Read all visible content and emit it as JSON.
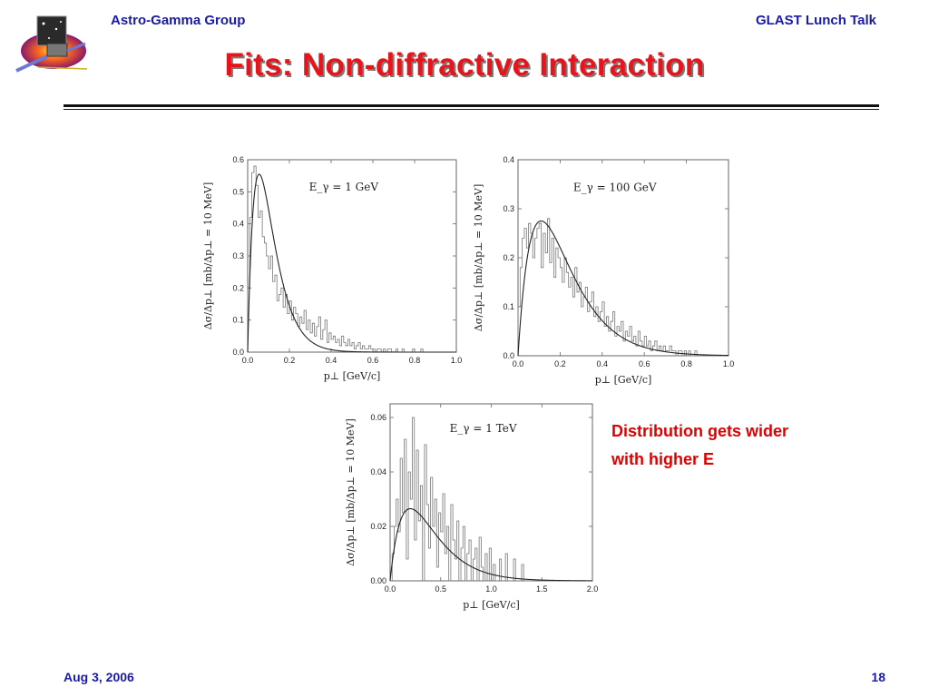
{
  "header": {
    "left": "Astro-Gamma Group",
    "right": "GLAST Lunch Talk"
  },
  "title": "Fits: Non-diffractive Interaction",
  "note": {
    "line1": "Distribution gets wider",
    "line2": "with higher E"
  },
  "footer": {
    "date": "Aug 3, 2006",
    "page": "18"
  },
  "colors": {
    "title": "#e8141c",
    "header": "#1a1aa8",
    "note": "#e00000"
  },
  "chart_data": [
    {
      "type": "line",
      "annotation": "E_γ = 1 GeV",
      "xlabel": "p⊥ [GeV/c]",
      "ylabel": "Δσ/Δp⊥ [mb/Δp⊥ = 10 MeV]",
      "xlim": [
        0.0,
        1.0
      ],
      "ylim": [
        0.0,
        0.6
      ],
      "xticks": [
        "0.0",
        "0.2",
        "0.4",
        "0.6",
        "0.8",
        "1.0"
      ],
      "yticks": [
        "0.0",
        "0.1",
        "0.2",
        "0.3",
        "0.4",
        "0.5",
        "0.6"
      ],
      "series": [
        {
          "kind": "histogram",
          "bin_width": 0.01,
          "values": [
            0.2,
            0.42,
            0.56,
            0.58,
            0.52,
            0.42,
            0.44,
            0.36,
            0.34,
            0.3,
            0.26,
            0.3,
            0.22,
            0.24,
            0.16,
            0.18,
            0.2,
            0.14,
            0.18,
            0.12,
            0.16,
            0.1,
            0.14,
            0.12,
            0.08,
            0.11,
            0.09,
            0.13,
            0.07,
            0.1,
            0.06,
            0.09,
            0.05,
            0.08,
            0.11,
            0.04,
            0.07,
            0.1,
            0.03,
            0.06,
            0.04,
            0.05,
            0.03,
            0.04,
            0.02,
            0.05,
            0.03,
            0.02,
            0.04,
            0.02,
            0.03,
            0.01,
            0.02,
            0.03,
            0.01,
            0.02,
            0.01,
            0.01,
            0.02,
            0.01,
            0.01,
            0.0,
            0.01,
            0.01,
            0.0,
            0.01,
            0.0,
            0.01,
            0.01,
            0.0,
            0.0,
            0.01,
            0.0,
            0.0,
            0.01,
            0.0,
            0.0,
            0.0,
            0.0,
            0.01,
            0.0,
            0.0,
            0.0,
            0.01,
            0.0,
            0.0,
            0.0,
            0.0,
            0.0,
            0.0,
            0.0,
            0.0,
            0.0,
            0.0,
            0.0,
            0.0,
            0.0,
            0.0,
            0.0,
            0.0
          ]
        },
        {
          "kind": "fit",
          "peak_x": 0.055,
          "peak_y": 0.555,
          "shape": "x*exp(-x/x0)"
        }
      ]
    },
    {
      "type": "line",
      "annotation": "E_γ = 100 GeV",
      "xlabel": "p⊥ [GeV/c]",
      "ylabel": "Δσ/Δp⊥ [mb/Δp⊥ = 10 MeV]",
      "xlim": [
        0.0,
        1.0
      ],
      "ylim": [
        0.0,
        0.4
      ],
      "xticks": [
        "0.0",
        "0.2",
        "0.4",
        "0.6",
        "0.8",
        "1.0"
      ],
      "yticks": [
        "0.0",
        "0.1",
        "0.2",
        "0.3",
        "0.4"
      ],
      "series": [
        {
          "kind": "histogram",
          "bin_width": 0.01,
          "values": [
            0.1,
            0.18,
            0.24,
            0.26,
            0.22,
            0.27,
            0.25,
            0.2,
            0.24,
            0.26,
            0.27,
            0.18,
            0.25,
            0.21,
            0.28,
            0.19,
            0.24,
            0.16,
            0.22,
            0.2,
            0.18,
            0.15,
            0.2,
            0.17,
            0.14,
            0.16,
            0.12,
            0.18,
            0.13,
            0.15,
            0.1,
            0.12,
            0.14,
            0.09,
            0.11,
            0.13,
            0.08,
            0.1,
            0.07,
            0.09,
            0.11,
            0.06,
            0.08,
            0.05,
            0.07,
            0.09,
            0.04,
            0.06,
            0.05,
            0.07,
            0.03,
            0.05,
            0.04,
            0.06,
            0.03,
            0.04,
            0.02,
            0.05,
            0.03,
            0.02,
            0.04,
            0.02,
            0.03,
            0.01,
            0.02,
            0.03,
            0.01,
            0.02,
            0.01,
            0.02,
            0.01,
            0.01,
            0.02,
            0.01,
            0.01,
            0.0,
            0.01,
            0.01,
            0.0,
            0.01,
            0.0,
            0.01,
            0.0,
            0.0,
            0.01,
            0.0,
            0.0,
            0.0,
            0.0,
            0.0,
            0.0,
            0.0,
            0.0,
            0.0,
            0.0,
            0.0,
            0.0,
            0.0,
            0.0,
            0.0
          ]
        },
        {
          "kind": "fit",
          "peak_x": 0.11,
          "peak_y": 0.275,
          "shape": "x*exp(-x/x0)"
        }
      ]
    },
    {
      "type": "line",
      "annotation": "E_γ = 1 TeV",
      "xlabel": "p⊥ [GeV/c]",
      "ylabel": "Δσ/Δp⊥ [mb/Δp⊥ = 10 MeV]",
      "xlim": [
        0.0,
        2.0
      ],
      "ylim": [
        0.0,
        0.065
      ],
      "xticks": [
        "0.0",
        "0.5",
        "1.0",
        "1.5",
        "2.0"
      ],
      "yticks": [
        "0.00",
        "0.02",
        "0.04",
        "0.06"
      ],
      "series": [
        {
          "kind": "histogram",
          "bin_width": 0.02,
          "values": [
            0.0,
            0.01,
            0.02,
            0.03,
            0.018,
            0.045,
            0.025,
            0.052,
            0.008,
            0.04,
            0.03,
            0.06,
            0.015,
            0.048,
            0.022,
            0.035,
            0.0,
            0.05,
            0.028,
            0.012,
            0.038,
            0.02,
            0.03,
            0.005,
            0.025,
            0.018,
            0.032,
            0.01,
            0.02,
            0.0,
            0.028,
            0.015,
            0.008,
            0.022,
            0.0,
            0.012,
            0.02,
            0.0,
            0.01,
            0.015,
            0.0,
            0.008,
            0.012,
            0.0,
            0.016,
            0.005,
            0.0,
            0.01,
            0.0,
            0.012,
            0.0,
            0.006,
            0.0,
            0.0,
            0.008,
            0.0,
            0.0,
            0.01,
            0.0,
            0.0,
            0.0,
            0.008,
            0.0,
            0.0,
            0.0,
            0.006,
            0.0,
            0.0,
            0.0,
            0.0,
            0.0,
            0.0,
            0.0,
            0.0,
            0.0,
            0.0,
            0.0,
            0.0,
            0.0,
            0.0,
            0.0,
            0.0,
            0.0,
            0.0,
            0.0,
            0.0,
            0.0,
            0.0,
            0.0,
            0.0,
            0.0,
            0.0,
            0.0,
            0.0,
            0.0,
            0.0,
            0.0,
            0.0,
            0.0,
            0.0
          ]
        },
        {
          "kind": "fit",
          "peak_x": 0.2,
          "peak_y": 0.0265,
          "shape": "x*exp(-x/x0)"
        }
      ]
    }
  ]
}
